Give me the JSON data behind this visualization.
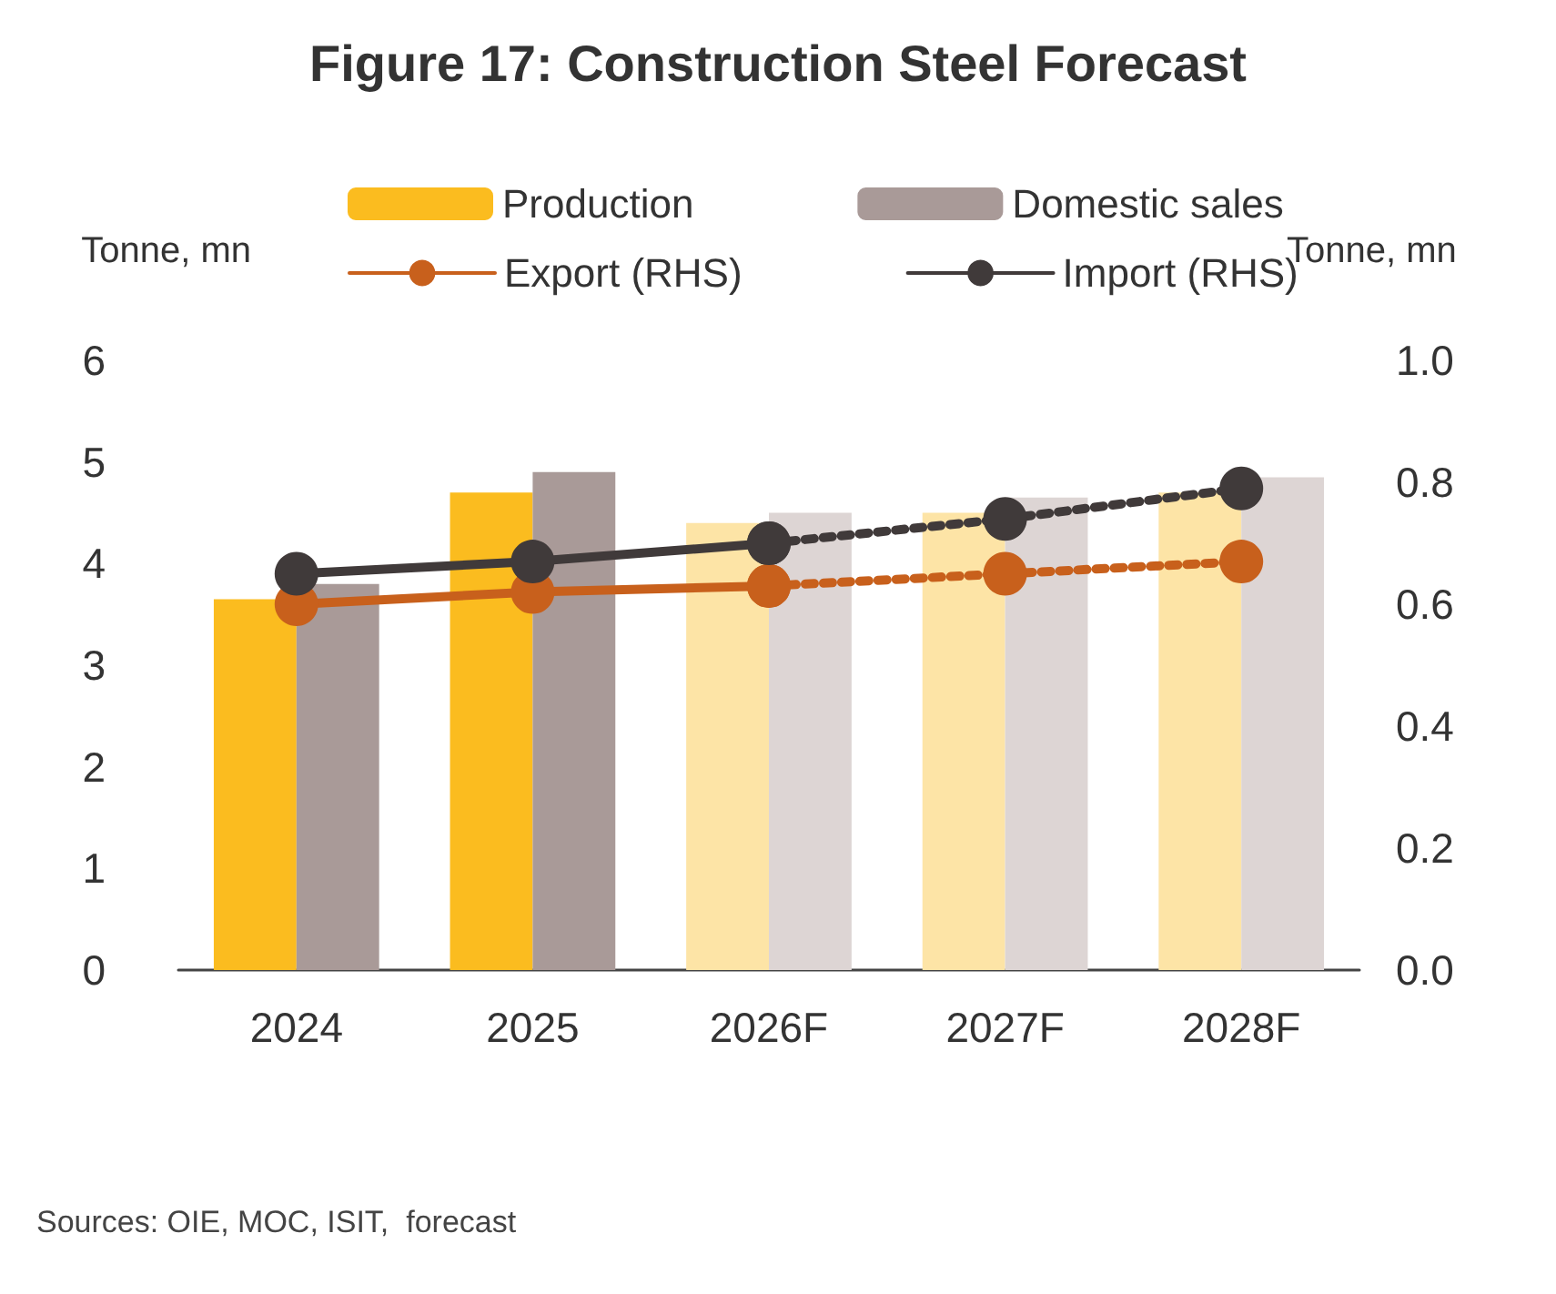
{
  "chart_data": {
    "type": "bar",
    "title": "Figure 17: Construction Steel Forecast",
    "ylabel": "Tonne, mn",
    "y2label": "Tonne, mn",
    "categories": [
      "2024",
      "2025",
      "2026F",
      "2027F",
      "2028F"
    ],
    "series": [
      {
        "name": "Production",
        "color": "#fbbc1f",
        "colors": [
          "#fbbc1f",
          "#fbbc1f",
          "#fde4a6",
          "#fde4a6",
          "#fde4a6"
        ],
        "values": [
          3.65,
          4.7,
          4.4,
          4.5,
          4.7
        ]
      },
      {
        "name": "Domestic sales",
        "color": "#a99a98",
        "colors": [
          "#a99a98",
          "#a99a98",
          "#ddd5d4",
          "#ddd5d4",
          "#ddd5d4"
        ],
        "values": [
          3.8,
          4.9,
          4.5,
          4.65,
          4.85
        ]
      },
      {
        "name": "Export (RHS)",
        "type": "line",
        "axis": "y2",
        "color": "#c8601c",
        "line_style": "solid",
        "values": [
          0.6,
          0.62,
          0.63,
          null,
          null
        ]
      },
      {
        "name": "Import (RHS)",
        "type": "line",
        "axis": "y2",
        "color": "#403a3a",
        "line_style": "solid",
        "values": [
          0.65,
          0.67,
          0.7,
          null,
          null
        ]
      },
      {
        "type": "line",
        "axis": "y2",
        "color": "#c8601c",
        "line_style": "dotted",
        "values": [
          null,
          null,
          0.63,
          0.65,
          0.67
        ]
      },
      {
        "type": "line",
        "axis": "y2",
        "color": "#403a3a",
        "line_style": "dotted",
        "values": [
          null,
          null,
          0.7,
          0.74,
          0.79
        ]
      }
    ],
    "ylim": [
      0,
      6
    ],
    "yticks": [
      0,
      1,
      2,
      3,
      4,
      5,
      6
    ],
    "y2lim": [
      0,
      1
    ],
    "y2ticks": [
      {
        "value": 0,
        "label": "0.0"
      },
      {
        "value": 0.2,
        "label": "0.2"
      },
      {
        "value": 0.4,
        "label": "0.4"
      },
      {
        "value": 0.6,
        "label": "0.6"
      },
      {
        "value": 0.8,
        "label": "0.8"
      },
      {
        "value": 1,
        "label": "1.0"
      }
    ],
    "grid": false,
    "legend": "top",
    "marker": "circle",
    "annotations": [
      "Sources: OIE, MOC, ISIT,  forecast"
    ]
  }
}
